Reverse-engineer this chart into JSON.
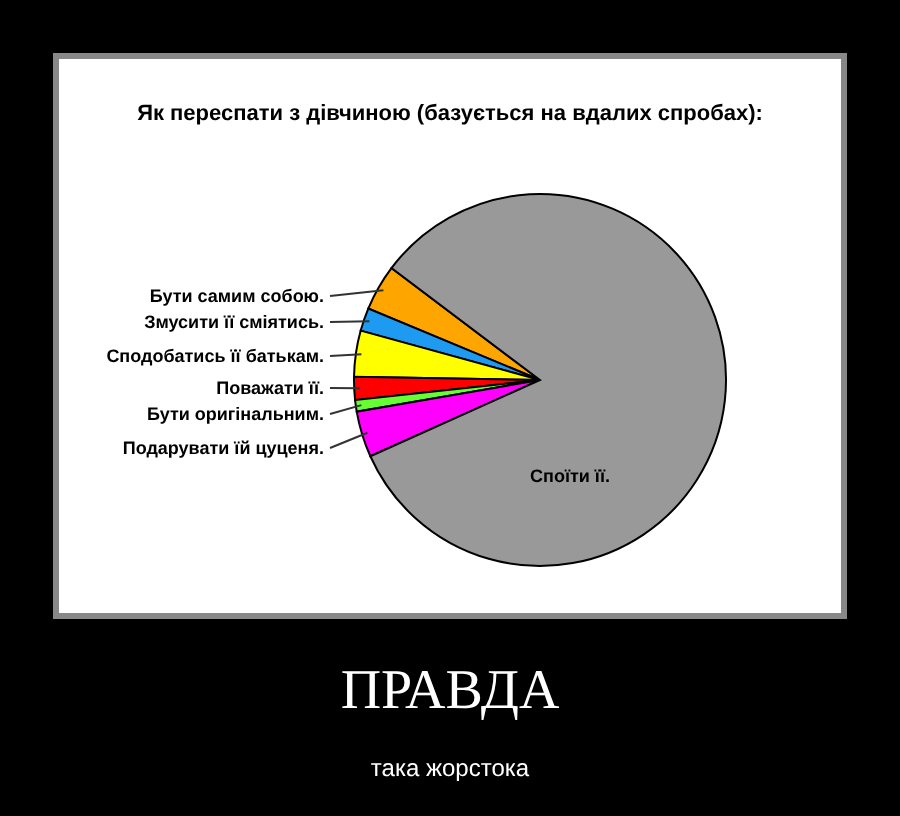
{
  "chart_data": {
    "type": "pie",
    "title": "Як переспати з дівчиною (базується на вдалих спробах):",
    "categories": [
      "Бути самим собою.",
      "Змусити її сміятись.",
      "Сподобатись її батькам.",
      "Поважати її.",
      "Бути оригінальним.",
      "Подарувати їй цуценя.",
      "Споїти її."
    ],
    "values": [
      4,
      2,
      4,
      2,
      1,
      4,
      83
    ],
    "colors": [
      "#ffa500",
      "#1e9bf0",
      "#ffff00",
      "#ff0000",
      "#66ff33",
      "#ff00ff",
      "#999999"
    ],
    "annotations": [
      "ПРАВДА",
      "така жорстока"
    ],
    "legend": false
  }
}
